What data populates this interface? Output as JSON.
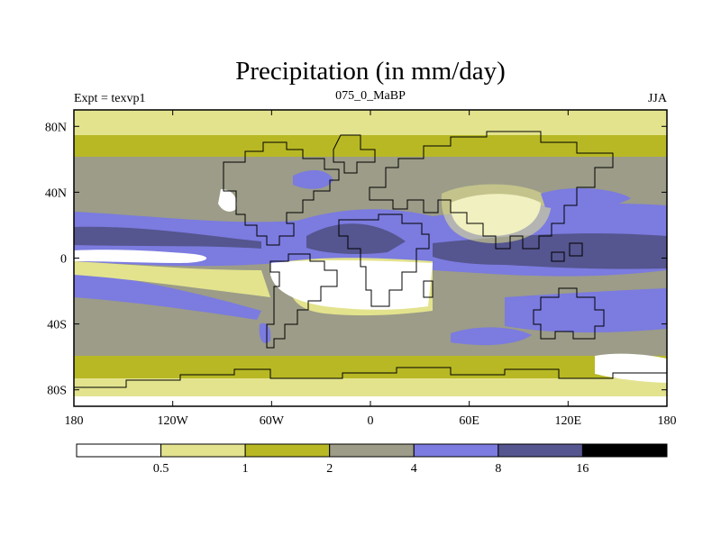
{
  "chart_data": {
    "type": "heatmap",
    "title": "Precipitation (in mm/day)",
    "left_string": "Expt = texvp1",
    "center_string": "075_0_MaBP",
    "right_string": "JJA",
    "x_range": [
      -180,
      180
    ],
    "y_range": [
      -90,
      90
    ],
    "x_ticks": [
      {
        "value": -180,
        "label": "180"
      },
      {
        "value": -120,
        "label": "120W"
      },
      {
        "value": -60,
        "label": "60W"
      },
      {
        "value": 0,
        "label": "0"
      },
      {
        "value": 60,
        "label": "60E"
      },
      {
        "value": 120,
        "label": "120E"
      },
      {
        "value": 180,
        "label": "180"
      }
    ],
    "y_ticks": [
      {
        "value": 80,
        "label": "80N"
      },
      {
        "value": 40,
        "label": "40N"
      },
      {
        "value": 0,
        "label": "0"
      },
      {
        "value": -40,
        "label": "40S"
      },
      {
        "value": -80,
        "label": "80S"
      }
    ],
    "colorbar": {
      "levels": [
        "0.5",
        "1",
        "2",
        "4",
        "8",
        "16"
      ],
      "colors": [
        "#ffffff",
        "#e3e38e",
        "#b8b824",
        "#9c9c88",
        "#7b7be0",
        "#55558f",
        "#000000"
      ]
    }
  }
}
